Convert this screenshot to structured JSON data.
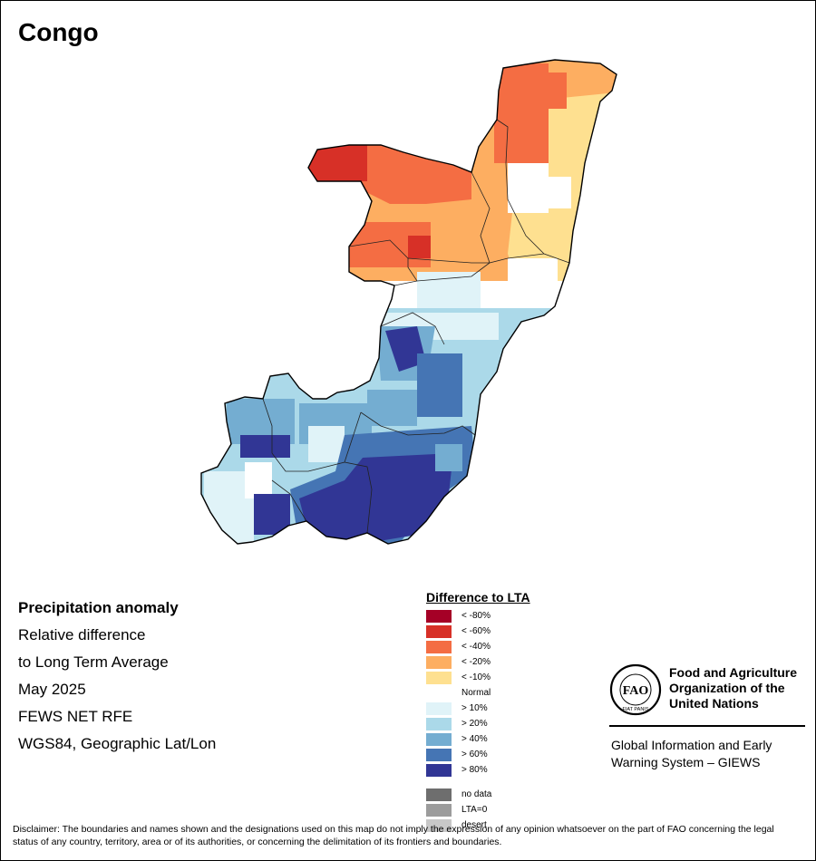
{
  "map": {
    "title": "Congo",
    "country_pattern": "precipitation anomaly: dry (orange/red) in the north, normal band across the centre, wet (blue) in the south"
  },
  "info": {
    "heading": "Precipitation anomaly",
    "lines": [
      "Relative difference",
      "to Long Term Average",
      "May 2025",
      "FEWS NET RFE",
      "WGS84, Geographic Lat/Lon"
    ]
  },
  "legend": {
    "title": "Difference to LTA",
    "items": [
      {
        "label": "< -80%",
        "color": "#a50026"
      },
      {
        "label": "< -60%",
        "color": "#d73027"
      },
      {
        "label": "< -40%",
        "color": "#f46d43"
      },
      {
        "label": "< -20%",
        "color": "#fdae61"
      },
      {
        "label": "< -10%",
        "color": "#fee090"
      },
      {
        "label": "Normal",
        "color": "#ffffff"
      },
      {
        "label": "> 10%",
        "color": "#e0f3f8"
      },
      {
        "label": "> 20%",
        "color": "#abd9e9"
      },
      {
        "label": "> 40%",
        "color": "#74add1"
      },
      {
        "label": "> 60%",
        "color": "#4575b4"
      },
      {
        "label": "> 80%",
        "color": "#313695"
      }
    ],
    "extra_items": [
      {
        "label": "no data",
        "color": "#6e6e6e"
      },
      {
        "label": "LTA=0",
        "color": "#9c9c9c"
      },
      {
        "label": "desert",
        "color": "#c8c8c8"
      }
    ]
  },
  "fao": {
    "org_lines": [
      "Food and Agriculture",
      "Organization of the",
      "United Nations"
    ],
    "logo_text": "FAO",
    "motto": "FIAT PANIS",
    "giews_lines": [
      "Global Information and Early",
      "Warning System – GIEWS"
    ]
  },
  "disclaimer": "Disclaimer: The boundaries and names shown and the designations used on this map do not imply the expression of any opinion whatsoever on the part of FAO concerning the legal status of any country, territory, area or of its authorities, or concerning the delimitation of its frontiers and boundaries."
}
